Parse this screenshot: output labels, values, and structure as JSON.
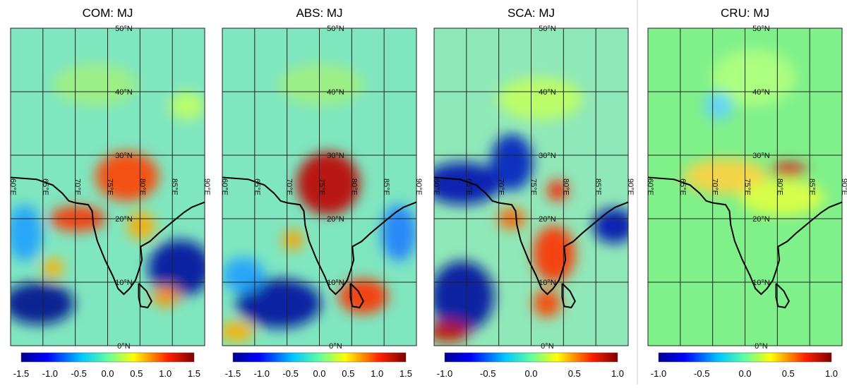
{
  "panels": [
    {
      "title": "COM: MJ",
      "lat_labels": [
        "0°N",
        "10°N",
        "20°N",
        "30°N",
        "40°N",
        "50°N"
      ],
      "lon_labels": [
        "60°E",
        "65°E",
        "70°E",
        "75°E",
        "80°E",
        "85°E",
        "90°E"
      ],
      "colorbar_ticks": [
        "-1.5",
        "-1.0",
        "-0.5",
        "0.0",
        "0.5",
        "1.0",
        "1.5"
      ]
    },
    {
      "title": "ABS: MJ",
      "lat_labels": [
        "0°N",
        "10°N",
        "20°N",
        "30°N",
        "40°N",
        "50°N"
      ],
      "lon_labels": [
        "60°E",
        "65°E",
        "70°E",
        "75°E",
        "80°E",
        "85°E",
        "90°E"
      ],
      "colorbar_ticks": [
        "-1.5",
        "-1.0",
        "-0.5",
        "0.0",
        "0.5",
        "1.0",
        "1.5"
      ]
    },
    {
      "title": "SCA: MJ",
      "lat_labels": [
        "0°N",
        "10°N",
        "20°N",
        "30°N",
        "40°N",
        "50°N"
      ],
      "lon_labels": [
        "60°E",
        "65°E",
        "70°E",
        "75°E",
        "80°E",
        "85°E",
        "90°E"
      ],
      "colorbar_ticks": [
        "-1.0",
        "-0.5",
        "0.0",
        "0.5",
        "1.0"
      ]
    },
    {
      "title": "CRU: MJ",
      "lat_labels": [
        "0°N",
        "10°N",
        "20°N",
        "30°N",
        "40°N",
        "50°N"
      ],
      "lon_labels": [
        "60°E",
        "65°E",
        "70°E",
        "75°E",
        "80°E",
        "85°E",
        "90°E"
      ],
      "colorbar_ticks": [
        "-1.0",
        "-0.5",
        "0.0",
        "0.5",
        "1.0"
      ]
    }
  ]
}
